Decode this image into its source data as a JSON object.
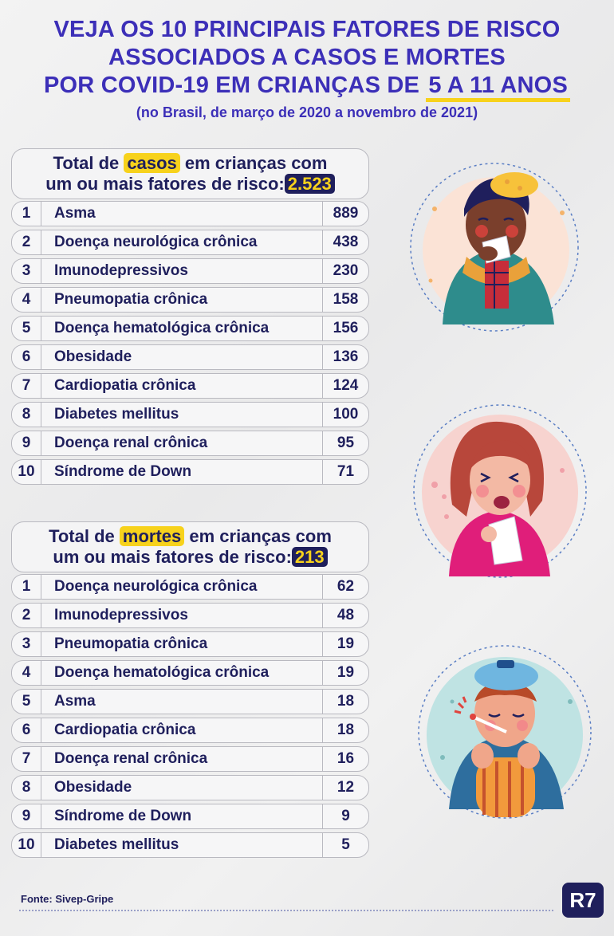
{
  "header": {
    "line1": "VEJA OS 10 PRINCIPAIS FATORES DE RISCO",
    "line2": "ASSOCIADOS A CASOS E MORTES",
    "line3_pre": "POR ",
    "line3_bold": "COVID-19 EM CRIANÇAS DE",
    "line3_hl": "5 A 11 ANOS",
    "subtitle": "(no Brasil, de março de 2020 a novembro de 2021)"
  },
  "cases": {
    "title_pre": "Total de ",
    "title_hl": "casos",
    "title_post": " em crianças com",
    "title_line2": "um ou mais fatores de risco:",
    "total": "2.523",
    "rows": [
      {
        "rank": "1",
        "name": "Asma",
        "value": "889"
      },
      {
        "rank": "2",
        "name": "Doença neurológica crônica",
        "value": "438"
      },
      {
        "rank": "3",
        "name": "Imunodepressivos",
        "value": "230"
      },
      {
        "rank": "4",
        "name": "Pneumopatia crônica",
        "value": "158"
      },
      {
        "rank": "5",
        "name": "Doença hematológica crônica",
        "value": "156"
      },
      {
        "rank": "6",
        "name": "Obesidade",
        "value": "136"
      },
      {
        "rank": "7",
        "name": "Cardiopatia crônica",
        "value": "124"
      },
      {
        "rank": "8",
        "name": "Diabetes mellitus",
        "value": "100"
      },
      {
        "rank": "9",
        "name": "Doença renal crônica",
        "value": "95"
      },
      {
        "rank": "10",
        "name": "Síndrome de Down",
        "value": "71"
      }
    ]
  },
  "deaths": {
    "title_pre": "Total de ",
    "title_hl": "mortes",
    "title_post": " em crianças com",
    "title_line2": "um ou mais fatores de risco:",
    "total": "213",
    "rows": [
      {
        "rank": "1",
        "name": "Doença neurológica crônica",
        "value": "62"
      },
      {
        "rank": "2",
        "name": "Imunodepressivos",
        "value": "48"
      },
      {
        "rank": "3",
        "name": "Pneumopatia crônica",
        "value": "19"
      },
      {
        "rank": "4",
        "name": "Doença hematológica crônica",
        "value": "19"
      },
      {
        "rank": "5",
        "name": "Asma",
        "value": "18"
      },
      {
        "rank": "6",
        "name": "Cardiopatia crônica",
        "value": "18"
      },
      {
        "rank": "7",
        "name": "Doença renal crônica",
        "value": "16"
      },
      {
        "rank": "8",
        "name": "Obesidade",
        "value": "12"
      },
      {
        "rank": "9",
        "name": "Síndrome de Down",
        "value": "9"
      },
      {
        "rank": "10",
        "name": "Diabetes mellitus",
        "value": "5"
      }
    ]
  },
  "footer": {
    "source": "Fonte: Sivep-Gripe",
    "logo": "R7"
  },
  "colors": {
    "title": "#3c2fb8",
    "text": "#1f1f5c",
    "highlight": "#f7d21c"
  }
}
